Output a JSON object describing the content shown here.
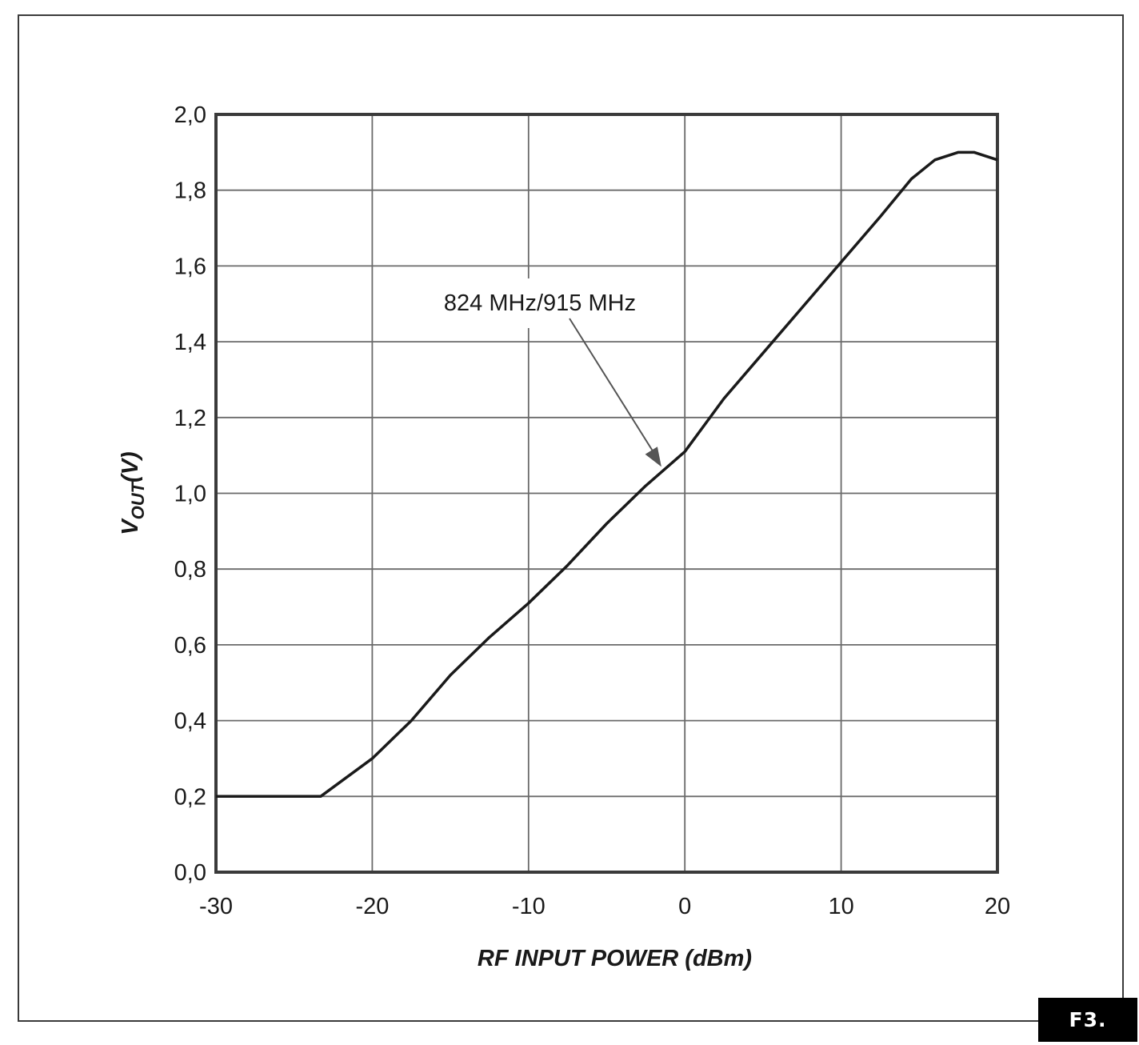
{
  "figure_label": "F3.",
  "chart_data": {
    "type": "line",
    "title": "",
    "xlabel": "RF INPUT POWER (dBm)",
    "ylabel": "V",
    "ylabel_sub": "OUT",
    "ylabel_suffix": "(V)",
    "xlim": [
      -30,
      20
    ],
    "ylim": [
      0,
      2.0
    ],
    "grid": true,
    "x_ticks": [
      -30,
      -20,
      -10,
      0,
      10,
      20
    ],
    "x_tick_labels": [
      "-30",
      "-20",
      "-10",
      "0",
      "10",
      "20"
    ],
    "y_ticks": [
      0,
      0.2,
      0.4,
      0.6,
      0.8,
      1.0,
      1.2,
      1.4,
      1.6,
      1.8,
      2.0
    ],
    "y_tick_labels": [
      "0,0",
      "0,2",
      "0,4",
      "0,6",
      "0,8",
      "1,0",
      "1,2",
      "1,4",
      "1,6",
      "1,8",
      "2,0"
    ],
    "annotation": {
      "text": "824 MHz/915 MHz",
      "points_to": [
        -1.5,
        1.07
      ]
    },
    "series": [
      {
        "name": "824 MHz/915 MHz",
        "x": [
          -30,
          -23.3,
          -20,
          -17.5,
          -15,
          -12.5,
          -10,
          -7.5,
          -5,
          -2.5,
          0,
          2.5,
          5,
          7.5,
          10,
          12.5,
          14.5,
          16,
          17.5,
          18.5,
          20
        ],
        "values": [
          0.2,
          0.2,
          0.3,
          0.4,
          0.52,
          0.62,
          0.71,
          0.81,
          0.92,
          1.02,
          1.11,
          1.25,
          1.37,
          1.49,
          1.61,
          1.73,
          1.83,
          1.88,
          1.9,
          1.9,
          1.88
        ]
      }
    ]
  }
}
